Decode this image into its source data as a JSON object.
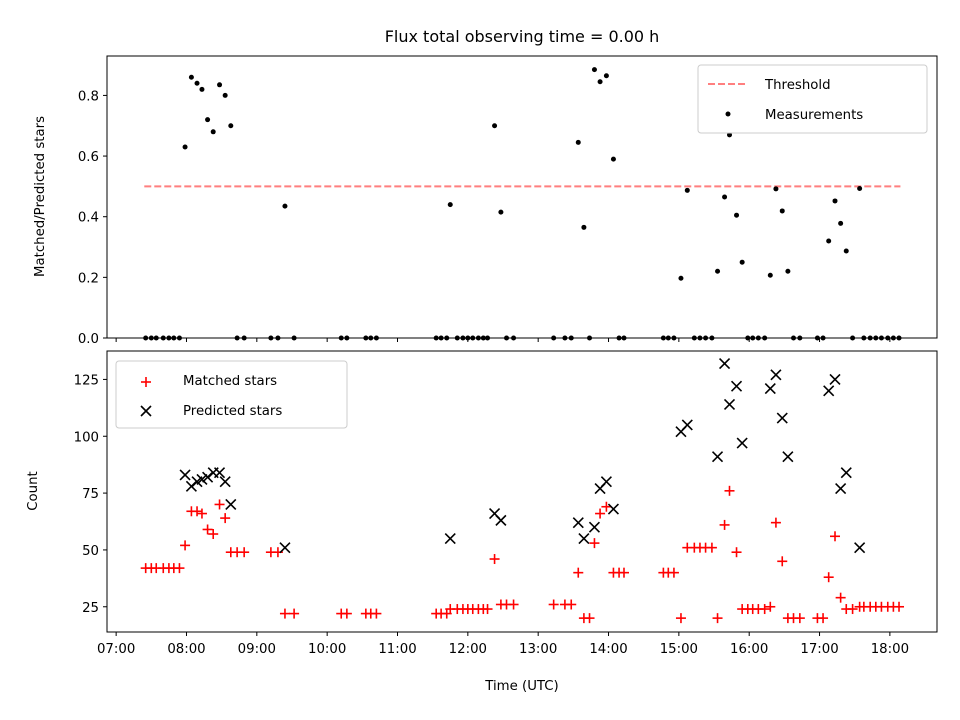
{
  "chart_data": [
    {
      "type": "scatter",
      "title": "Flux total observing time = 0.00 h",
      "xlabel": "",
      "ylabel": "Matched/Predicted stars",
      "ylim": [
        0,
        0.93
      ],
      "xlim": [
        6.87,
        18.67
      ],
      "yticks": [
        0.0,
        0.2,
        0.4,
        0.6,
        0.8
      ],
      "ytick_labels": [
        "0.0",
        "0.2",
        "0.4",
        "0.6",
        "0.8"
      ],
      "legend_position": "upper right",
      "threshold": {
        "name": "Threshold",
        "value": 0.5,
        "x_range": [
          7.4,
          18.15
        ],
        "color": "#ff7f7f",
        "style": "dashed"
      },
      "series": [
        {
          "name": "Measurements",
          "color": "#000000",
          "marker": "dot",
          "x": [
            7.42,
            7.5,
            7.57,
            7.67,
            7.75,
            7.82,
            7.9,
            7.98,
            8.07,
            8.15,
            8.22,
            8.3,
            8.38,
            8.47,
            8.55,
            8.63,
            8.72,
            8.82,
            9.2,
            9.3,
            9.4,
            9.53,
            10.2,
            10.28,
            10.55,
            10.62,
            10.7,
            11.55,
            11.62,
            11.7,
            11.75,
            11.85,
            11.93,
            12.0,
            12.07,
            12.15,
            12.22,
            12.28,
            12.38,
            12.47,
            12.55,
            12.65,
            13.22,
            13.38,
            13.47,
            13.57,
            13.65,
            13.73,
            13.8,
            13.88,
            13.97,
            14.07,
            14.15,
            14.22,
            14.78,
            14.85,
            14.93,
            15.03,
            15.12,
            15.22,
            15.3,
            15.38,
            15.47,
            15.55,
            15.65,
            15.72,
            15.82,
            15.9,
            15.98,
            16.05,
            16.13,
            16.22,
            16.3,
            16.38,
            16.47,
            16.55,
            16.63,
            16.72,
            16.97,
            17.05,
            17.13,
            17.22,
            17.3,
            17.38,
            17.47,
            17.57,
            17.63,
            17.72,
            17.8,
            17.88,
            17.97,
            18.05,
            18.13
          ],
          "y": [
            0.0,
            0.0,
            0.0,
            0.0,
            0.0,
            0.0,
            0.0,
            0.63,
            0.86,
            0.84,
            0.82,
            0.72,
            0.68,
            0.835,
            0.8,
            0.7,
            0.0,
            0.0,
            0.0,
            0.0,
            0.435,
            0.0,
            0.0,
            0.0,
            0.0,
            0.0,
            0.0,
            0.0,
            0.0,
            0.0,
            0.44,
            0.0,
            0.0,
            0.0,
            0.0,
            0.0,
            0.0,
            0.0,
            0.7,
            0.415,
            0.0,
            0.0,
            0.0,
            0.0,
            0.0,
            0.645,
            0.365,
            0.0,
            0.885,
            0.845,
            0.865,
            0.59,
            0.0,
            0.0,
            0.0,
            0.0,
            0.0,
            0.197,
            0.487,
            0.0,
            0.0,
            0.0,
            0.0,
            0.22,
            0.465,
            0.67,
            0.405,
            0.25,
            0.0,
            0.0,
            0.0,
            0.0,
            0.207,
            0.492,
            0.419,
            0.22,
            0.0,
            0.0,
            0.0,
            0.0,
            0.32,
            0.452,
            0.378,
            0.287,
            0.0,
            0.493,
            0.0,
            0.0,
            0.0,
            0.0,
            0.0,
            0.0,
            0.0
          ]
        }
      ]
    },
    {
      "type": "scatter",
      "title": "",
      "xlabel": "Time (UTC)",
      "ylabel": "Count",
      "ylim": [
        13.9,
        137.5
      ],
      "xlim": [
        6.87,
        18.67
      ],
      "yticks": [
        25,
        50,
        75,
        100,
        125
      ],
      "ytick_labels": [
        "25",
        "50",
        "75",
        "100",
        "125"
      ],
      "xticks": [
        7,
        8,
        9,
        10,
        11,
        12,
        13,
        14,
        15,
        16,
        17,
        18
      ],
      "xtick_labels": [
        "07:00",
        "08:00",
        "09:00",
        "10:00",
        "11:00",
        "12:00",
        "13:00",
        "14:00",
        "15:00",
        "16:00",
        "17:00",
        "18:00"
      ],
      "legend_position": "upper left",
      "series": [
        {
          "name": "Matched stars",
          "color": "#ff0000",
          "marker": "plus",
          "x": [
            7.42,
            7.5,
            7.57,
            7.67,
            7.75,
            7.82,
            7.9,
            7.98,
            8.07,
            8.15,
            8.22,
            8.3,
            8.38,
            8.47,
            8.55,
            8.63,
            8.72,
            8.82,
            9.2,
            9.3,
            9.4,
            9.53,
            10.2,
            10.28,
            10.55,
            10.62,
            10.7,
            11.55,
            11.62,
            11.7,
            11.75,
            11.85,
            11.93,
            12.0,
            12.07,
            12.15,
            12.22,
            12.28,
            12.38,
            12.47,
            12.55,
            12.65,
            13.22,
            13.38,
            13.47,
            13.57,
            13.65,
            13.73,
            13.8,
            13.88,
            13.97,
            14.07,
            14.15,
            14.22,
            14.78,
            14.85,
            14.93,
            15.03,
            15.12,
            15.22,
            15.3,
            15.38,
            15.47,
            15.55,
            15.65,
            15.72,
            15.82,
            15.9,
            15.98,
            16.05,
            16.13,
            16.22,
            16.3,
            16.38,
            16.47,
            16.55,
            16.63,
            16.72,
            16.97,
            17.05,
            17.13,
            17.22,
            17.3,
            17.38,
            17.47,
            17.57,
            17.63,
            17.72,
            17.8,
            17.88,
            17.97,
            18.05,
            18.13
          ],
          "y": [
            42,
            42,
            42,
            42,
            42,
            42,
            42,
            52,
            67,
            67,
            66,
            59,
            57,
            70,
            64,
            49,
            49,
            49,
            49,
            49,
            22,
            22,
            22,
            22,
            22,
            22,
            22,
            22,
            22,
            22,
            24,
            24,
            24,
            24,
            24,
            24,
            24,
            24,
            46,
            26,
            26,
            26,
            26,
            26,
            26,
            40,
            20,
            20,
            53,
            66,
            69,
            40,
            40,
            40,
            40,
            40,
            40,
            20,
            51,
            51,
            51,
            51,
            51,
            20,
            61,
            76,
            49,
            24,
            24,
            24,
            24,
            24,
            25,
            62,
            45,
            20,
            20,
            20,
            20,
            20,
            38,
            56,
            29,
            24,
            24,
            25,
            25,
            25,
            25,
            25,
            25,
            25,
            25
          ]
        },
        {
          "name": "Predicted stars",
          "color": "#000000",
          "marker": "x",
          "x": [
            7.98,
            8.07,
            8.15,
            8.22,
            8.3,
            8.38,
            8.47,
            8.55,
            8.63,
            9.4,
            11.75,
            12.38,
            12.47,
            13.57,
            13.65,
            13.8,
            13.88,
            13.97,
            14.07,
            15.03,
            15.12,
            15.55,
            15.65,
            15.72,
            15.82,
            15.9,
            16.3,
            16.38,
            16.47,
            16.55,
            17.13,
            17.22,
            17.3,
            17.38,
            17.57
          ],
          "y": [
            83,
            78,
            80,
            81,
            82,
            84,
            84,
            80,
            70,
            51,
            55,
            66,
            63,
            62,
            55,
            60,
            77,
            80,
            68,
            102,
            105,
            91,
            132,
            114,
            122,
            97,
            121,
            127,
            108,
            91,
            120,
            125,
            77,
            84,
            51
          ]
        }
      ]
    }
  ]
}
